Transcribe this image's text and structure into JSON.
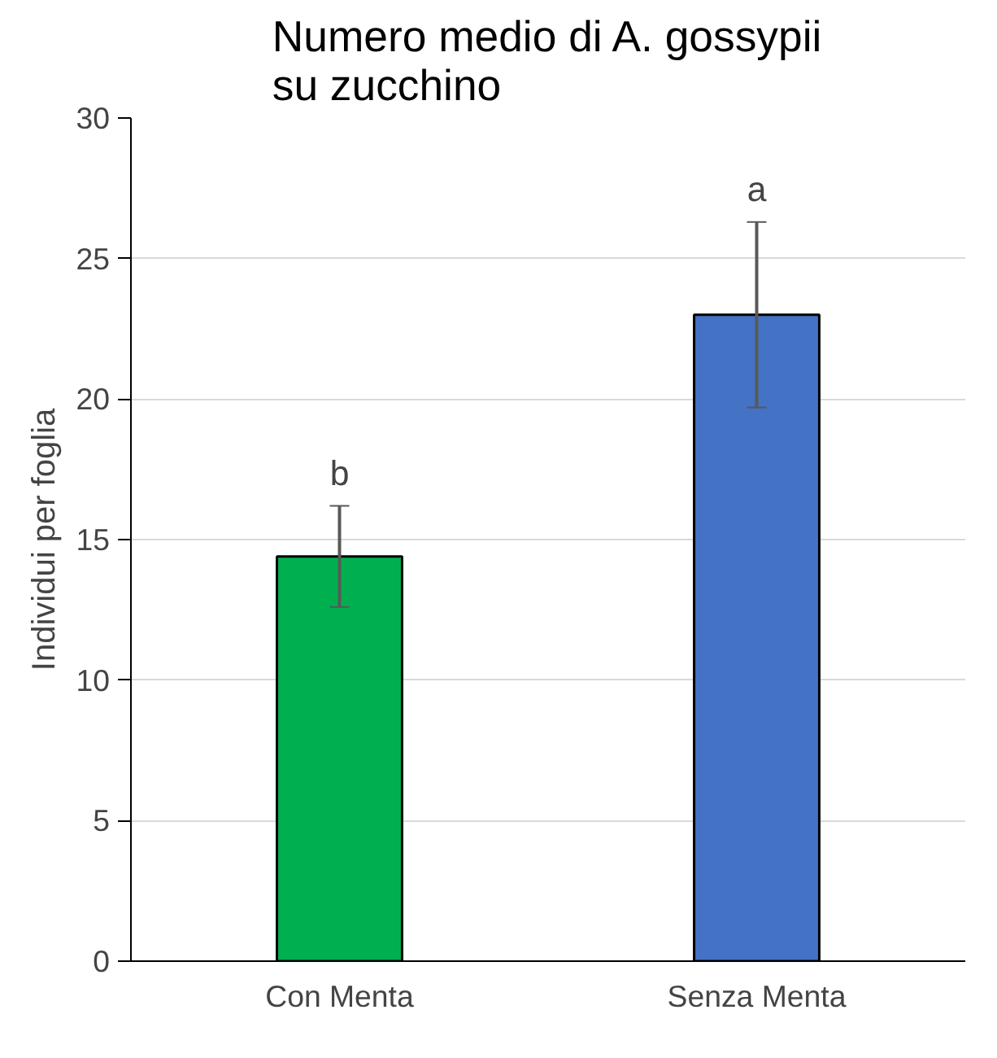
{
  "chart_data": {
    "type": "bar",
    "title": "Numero medio di A. gossypii\nsu zucchino",
    "ylabel": "Individui per foglia",
    "categories": [
      "Con Menta",
      "Senza Menta"
    ],
    "values": [
      14.4,
      23.0
    ],
    "colors": [
      "#00b050",
      "#4472c4"
    ],
    "errors": [
      [
        12.6,
        16.2
      ],
      [
        19.7,
        26.3
      ]
    ],
    "ylim": [
      0,
      30
    ],
    "yticks": [
      0,
      5,
      10,
      15,
      20,
      25,
      30
    ],
    "grid": "y",
    "annotations": [
      {
        "text": "b",
        "x": "Con Menta",
        "y": 16.2
      },
      {
        "text": "a",
        "x": "Senza Menta",
        "y": 26.3
      }
    ]
  }
}
